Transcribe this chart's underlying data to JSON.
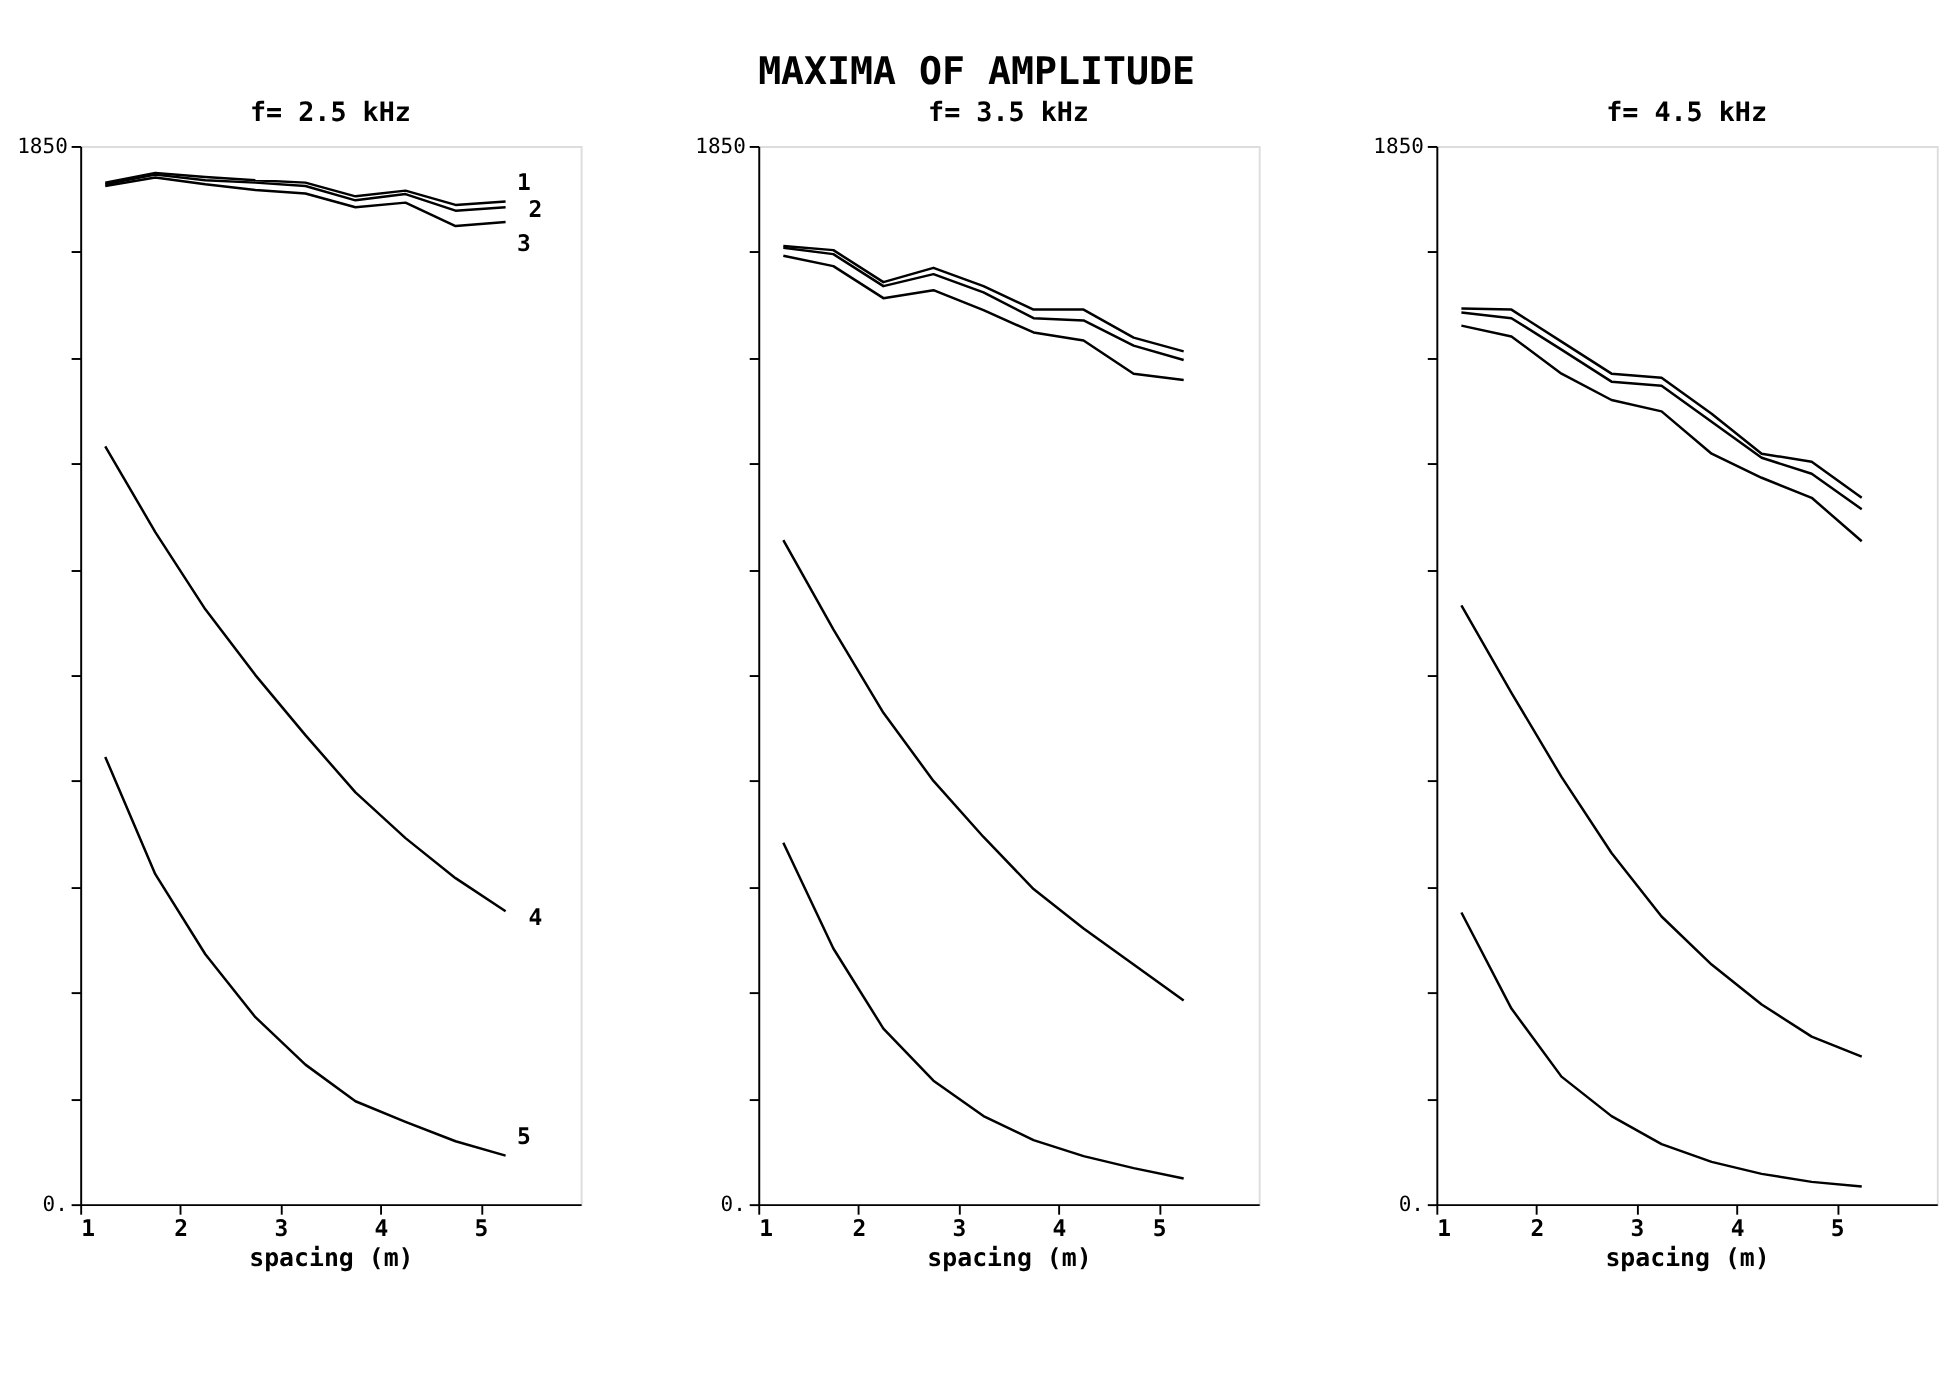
{
  "chart_data": [
    {
      "type": "line",
      "title": "f= 2.5 kHz",
      "xlabel": "spacing (m)",
      "annotations": [
        "MAXIMA OF AMPLITUDE"
      ],
      "x": [
        1.25,
        1.75,
        2.25,
        2.75,
        3.25,
        3.75,
        4.25,
        4.75,
        5.25
      ],
      "xlim": [
        1,
        6
      ],
      "xticks": [
        1,
        2,
        3,
        4,
        5
      ],
      "ylim": [
        0,
        1850
      ],
      "yticks": [
        {
          "value": 0,
          "label": "0."
        },
        {
          "value": 185,
          "label": null
        },
        {
          "value": 370,
          "label": null
        },
        {
          "value": 555,
          "label": null
        },
        {
          "value": 740,
          "label": null
        },
        {
          "value": 925,
          "label": null
        },
        {
          "value": 1110,
          "label": null
        },
        {
          "value": 1295,
          "label": null
        },
        {
          "value": 1480,
          "label": null
        },
        {
          "value": 1665,
          "label": null
        },
        1850
      ],
      "grid": false,
      "legend": false,
      "series": [
        {
          "name": "1",
          "color": "#000000",
          "values": [
            1786,
            1803,
            1796,
            1790,
            1786,
            1762,
            1772,
            1747,
            1753
          ]
        },
        {
          "name": "2",
          "color": "#000000",
          "values": [
            1783,
            1800,
            1790,
            1786,
            1780,
            1755,
            1766,
            1737,
            1743
          ]
        },
        {
          "name": "3",
          "color": "#000000",
          "values": [
            1780,
            1795,
            1783,
            1773,
            1767,
            1743,
            1751,
            1710,
            1717
          ]
        },
        {
          "name": "4",
          "color": "#000000",
          "values": [
            1325,
            1175,
            1040,
            925,
            820,
            720,
            640,
            570,
            512
          ]
        },
        {
          "name": "5",
          "color": "#000000",
          "values": [
            782,
            577,
            437,
            327,
            244,
            180,
            144,
            110,
            85
          ]
        }
      ]
    },
    {
      "type": "line",
      "title": "f= 3.5 kHz",
      "xlabel": "spacing (m)",
      "x": [
        1.25,
        1.75,
        2.25,
        2.75,
        3.25,
        3.75,
        4.25,
        4.75,
        5.25
      ],
      "xlim": [
        1,
        6
      ],
      "xticks": [
        1,
        2,
        3,
        4,
        5
      ],
      "ylim": [
        0,
        1850
      ],
      "yticks": [
        {
          "value": 0,
          "label": "0."
        },
        {
          "value": 185,
          "label": null
        },
        {
          "value": 370,
          "label": null
        },
        {
          "value": 555,
          "label": null
        },
        {
          "value": 740,
          "label": null
        },
        {
          "value": 925,
          "label": null
        },
        {
          "value": 1110,
          "label": null
        },
        {
          "value": 1295,
          "label": null
        },
        {
          "value": 1480,
          "label": null
        },
        {
          "value": 1665,
          "label": null
        },
        1850
      ],
      "grid": false,
      "legend": false,
      "series": [
        {
          "color": "#000000",
          "values": [
            1675,
            1668,
            1612,
            1637,
            1605,
            1564,
            1564,
            1515,
            1491
          ]
        },
        {
          "color": "#000000",
          "values": [
            1672,
            1661,
            1605,
            1626,
            1594,
            1549,
            1545,
            1501,
            1476
          ]
        },
        {
          "color": "#000000",
          "values": [
            1658,
            1640,
            1584,
            1598,
            1563,
            1524,
            1510,
            1452,
            1441
          ]
        },
        {
          "color": "#000000",
          "values": [
            1161,
            1005,
            859,
            740,
            642,
            551,
            482,
            419,
            356
          ]
        },
        {
          "color": "#000000",
          "values": [
            632,
            447,
            307,
            216,
            154,
            112,
            84,
            63,
            45
          ]
        }
      ]
    },
    {
      "type": "line",
      "title": "f= 4.5 kHz",
      "xlabel": "spacing (m)",
      "x": [
        1.25,
        1.75,
        2.25,
        2.75,
        3.25,
        3.75,
        4.25,
        4.75,
        5.25
      ],
      "xlim": [
        1,
        6
      ],
      "xticks": [
        1,
        2,
        3,
        4,
        5
      ],
      "ylim": [
        0,
        1850
      ],
      "yticks": [
        {
          "value": 0,
          "label": "0."
        },
        {
          "value": 185,
          "label": null
        },
        {
          "value": 370,
          "label": null
        },
        {
          "value": 555,
          "label": null
        },
        {
          "value": 740,
          "label": null
        },
        {
          "value": 925,
          "label": null
        },
        {
          "value": 1110,
          "label": null
        },
        {
          "value": 1295,
          "label": null
        },
        {
          "value": 1480,
          "label": null
        },
        {
          "value": 1665,
          "label": null
        },
        1850
      ],
      "grid": false,
      "legend": false,
      "series": [
        {
          "color": "#000000",
          "values": [
            1566,
            1564,
            1508,
            1452,
            1445,
            1382,
            1312,
            1298,
            1235
          ]
        },
        {
          "color": "#000000",
          "values": [
            1559,
            1549,
            1494,
            1438,
            1431,
            1368,
            1305,
            1277,
            1215
          ]
        },
        {
          "color": "#000000",
          "values": [
            1536,
            1517,
            1452,
            1406,
            1386,
            1312,
            1270,
            1235,
            1159
          ]
        },
        {
          "color": "#000000",
          "values": [
            1047,
            894,
            747,
            614,
            503,
            419,
            349,
            293,
            258
          ]
        },
        {
          "color": "#000000",
          "values": [
            510,
            342,
            223,
            154,
            105,
            74,
            53,
            39,
            31
          ]
        }
      ]
    }
  ]
}
